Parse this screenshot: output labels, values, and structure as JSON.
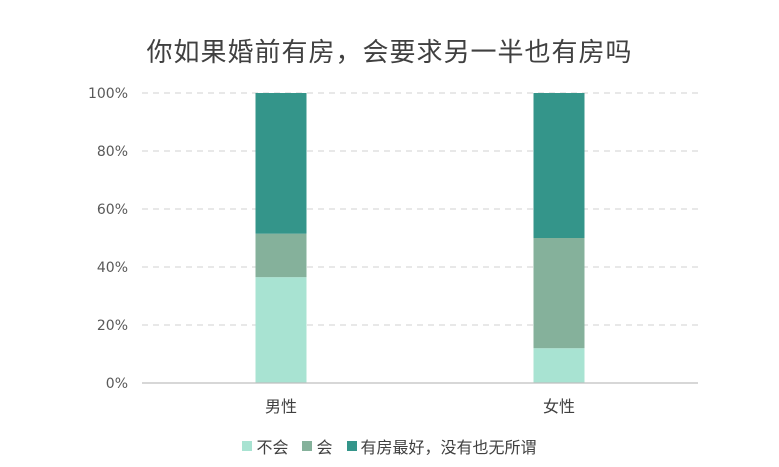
{
  "chart_data": {
    "type": "bar",
    "stacked": true,
    "title": "你如果婚前有房，会要求另一半也有房吗",
    "categories": [
      "男性",
      "女性"
    ],
    "series": [
      {
        "name": "不会",
        "values": [
          36.5,
          12
        ],
        "color": "#a8e3d2"
      },
      {
        "name": "会",
        "values": [
          15,
          38
        ],
        "color": "#85b19b"
      },
      {
        "name": "有房最好，没有也无所谓",
        "values": [
          48.5,
          50
        ],
        "color": "#34958a"
      }
    ],
    "ylim": [
      0,
      100
    ],
    "yticks": [
      "0%",
      "20%",
      "40%",
      "60%",
      "80%",
      "100%"
    ],
    "grid": true,
    "legend_position": "bottom"
  }
}
